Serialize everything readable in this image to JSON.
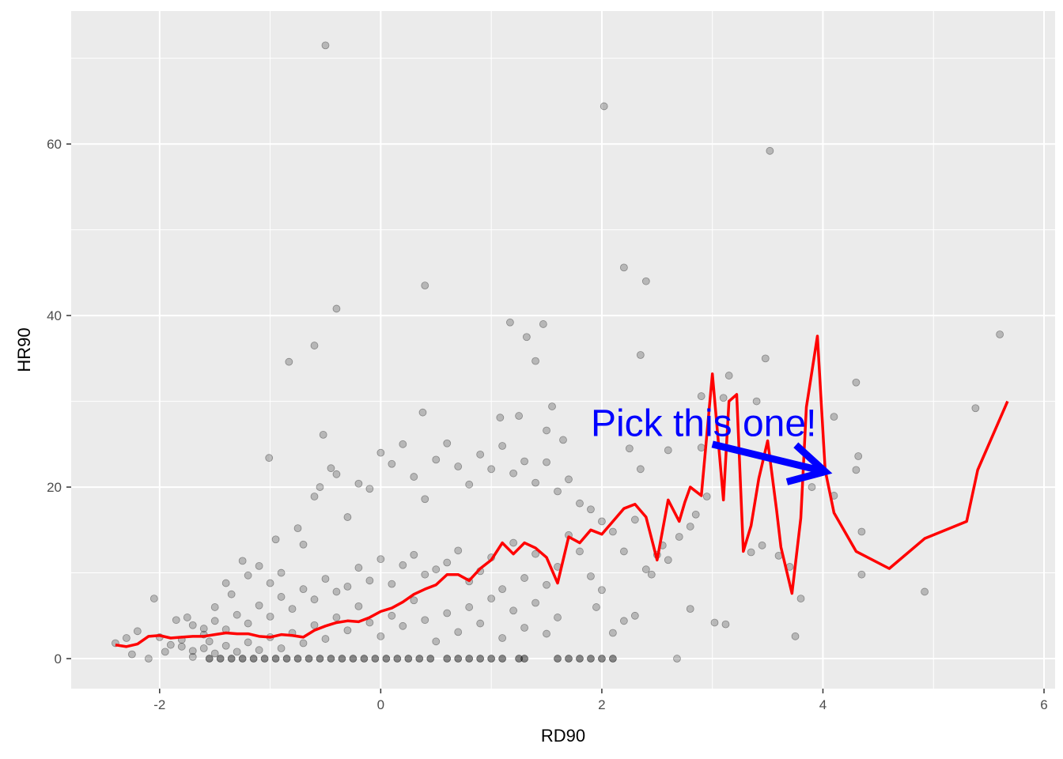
{
  "chart_data": {
    "type": "scatter",
    "title": "",
    "xlabel": "RD90",
    "ylabel": "HR90",
    "xlim": [
      -2.8,
      6.1
    ],
    "ylim": [
      -3.5,
      75.5
    ],
    "x_ticks": [
      -2,
      0,
      2,
      4,
      6
    ],
    "y_ticks": [
      0,
      20,
      40,
      60
    ],
    "x_tick_labels": [
      "-2",
      "0",
      "2",
      "4",
      "6"
    ],
    "y_tick_labels": [
      "0",
      "20",
      "40",
      "60"
    ],
    "grid": true,
    "legend": "none",
    "colors": {
      "panel": "#ebebeb",
      "grid": "#ffffff",
      "points": "#000000",
      "line": "#ff0000",
      "annotation": "#0000ff"
    },
    "annotation": {
      "text": "Pick this one!",
      "text_at": [
        1.9,
        27.5
      ],
      "arrow_from": [
        3.0,
        25.0
      ],
      "arrow_to": [
        4.02,
        21.8
      ]
    },
    "points": [
      [
        -0.5,
        71.5
      ],
      [
        2.02,
        64.4
      ],
      [
        3.52,
        59.2
      ],
      [
        2.2,
        45.6
      ],
      [
        2.4,
        44.0
      ],
      [
        0.4,
        43.5
      ],
      [
        -0.4,
        40.8
      ],
      [
        1.17,
        39.2
      ],
      [
        1.47,
        39.0
      ],
      [
        -0.6,
        36.5
      ],
      [
        -0.83,
        34.6
      ],
      [
        1.32,
        37.5
      ],
      [
        2.35,
        35.4
      ],
      [
        3.48,
        35.0
      ],
      [
        1.4,
        34.7
      ],
      [
        3.15,
        33.0
      ],
      [
        4.3,
        32.2
      ],
      [
        5.6,
        37.8
      ],
      [
        3.4,
        30.0
      ],
      [
        2.9,
        30.6
      ],
      [
        3.1,
        30.4
      ],
      [
        1.55,
        29.4
      ],
      [
        4.1,
        28.2
      ],
      [
        0.38,
        28.7
      ],
      [
        1.08,
        28.1
      ],
      [
        1.25,
        28.3
      ],
      [
        -0.52,
        26.1
      ],
      [
        -1.01,
        23.4
      ],
      [
        1.5,
        26.6
      ],
      [
        1.65,
        25.5
      ],
      [
        2.25,
        24.5
      ],
      [
        2.35,
        22.1
      ],
      [
        2.6,
        24.3
      ],
      [
        2.9,
        24.6
      ],
      [
        4.32,
        23.6
      ],
      [
        4.1,
        19.0
      ],
      [
        4.3,
        22.0
      ],
      [
        3.9,
        20.0
      ],
      [
        3.6,
        12.0
      ],
      [
        3.7,
        10.7
      ],
      [
        3.8,
        7.0
      ],
      [
        3.75,
        2.6
      ],
      [
        4.35,
        14.8
      ],
      [
        4.35,
        9.8
      ],
      [
        4.92,
        7.8
      ],
      [
        5.38,
        29.2
      ],
      [
        3.35,
        12.4
      ],
      [
        3.45,
        13.2
      ],
      [
        3.02,
        4.2
      ],
      [
        3.12,
        4.0
      ],
      [
        2.68,
        0.0
      ],
      [
        2.8,
        5.8
      ],
      [
        2.55,
        13.2
      ],
      [
        2.45,
        9.8
      ],
      [
        2.3,
        5.0
      ],
      [
        2.1,
        3.0
      ],
      [
        2.2,
        4.4
      ],
      [
        1.95,
        6.0
      ],
      [
        -2.4,
        1.8
      ],
      [
        -2.3,
        2.4
      ],
      [
        -2.25,
        0.5
      ],
      [
        -2.2,
        3.2
      ],
      [
        -2.1,
        0.0
      ],
      [
        -2.05,
        7.0
      ],
      [
        -2.0,
        2.5
      ],
      [
        -1.95,
        0.8
      ],
      [
        -1.85,
        4.5
      ],
      [
        -1.75,
        4.8
      ],
      [
        -1.7,
        0.2
      ],
      [
        -1.6,
        3.5
      ],
      [
        -1.55,
        2.0
      ],
      [
        -1.5,
        6.0
      ],
      [
        -1.4,
        8.8
      ],
      [
        -1.35,
        7.5
      ],
      [
        -1.25,
        11.4
      ],
      [
        -1.2,
        9.7
      ],
      [
        -1.1,
        10.8
      ],
      [
        -1.0,
        8.8
      ],
      [
        -0.95,
        13.9
      ],
      [
        -0.9,
        10.0
      ],
      [
        -0.75,
        15.2
      ],
      [
        -0.7,
        13.3
      ],
      [
        -0.6,
        18.9
      ],
      [
        -0.55,
        20.0
      ],
      [
        -0.45,
        22.2
      ],
      [
        -0.4,
        21.5
      ],
      [
        -0.3,
        16.5
      ],
      [
        -0.2,
        20.4
      ],
      [
        -0.1,
        19.8
      ],
      [
        0.0,
        24.0
      ],
      [
        0.1,
        22.7
      ],
      [
        0.2,
        25.0
      ],
      [
        0.3,
        21.2
      ],
      [
        0.4,
        18.6
      ],
      [
        0.5,
        23.2
      ],
      [
        0.6,
        25.1
      ],
      [
        0.7,
        22.4
      ],
      [
        0.8,
        20.3
      ],
      [
        0.9,
        23.8
      ],
      [
        1.0,
        22.1
      ],
      [
        1.1,
        24.8
      ],
      [
        1.2,
        21.6
      ],
      [
        1.3,
        23.0
      ],
      [
        1.4,
        20.5
      ],
      [
        1.5,
        22.9
      ],
      [
        1.6,
        19.5
      ],
      [
        1.7,
        20.9
      ],
      [
        1.8,
        18.1
      ],
      [
        1.9,
        17.4
      ],
      [
        2.0,
        16.0
      ],
      [
        2.1,
        14.8
      ],
      [
        2.2,
        12.5
      ],
      [
        2.3,
        16.2
      ],
      [
        2.4,
        10.4
      ],
      [
        2.5,
        12.1
      ],
      [
        2.6,
        11.5
      ],
      [
        2.7,
        14.2
      ],
      [
        2.8,
        15.4
      ],
      [
        2.85,
        16.8
      ],
      [
        2.95,
        18.9
      ],
      [
        1.8,
        12.5
      ],
      [
        1.9,
        9.6
      ],
      [
        2.0,
        8.0
      ],
      [
        1.7,
        14.4
      ],
      [
        1.6,
        10.7
      ],
      [
        1.5,
        8.6
      ],
      [
        1.4,
        12.2
      ],
      [
        1.3,
        9.4
      ],
      [
        1.2,
        13.5
      ],
      [
        1.1,
        8.1
      ],
      [
        1.0,
        11.8
      ],
      [
        0.9,
        10.2
      ],
      [
        0.8,
        9.0
      ],
      [
        0.7,
        12.6
      ],
      [
        0.6,
        11.2
      ],
      [
        0.5,
        10.4
      ],
      [
        0.4,
        9.8
      ],
      [
        0.3,
        12.1
      ],
      [
        0.2,
        10.9
      ],
      [
        0.1,
        8.7
      ],
      [
        0.0,
        11.6
      ],
      [
        -0.1,
        9.1
      ],
      [
        -0.2,
        10.6
      ],
      [
        -0.3,
        8.4
      ],
      [
        -0.4,
        7.8
      ],
      [
        -0.5,
        9.3
      ],
      [
        -0.6,
        6.9
      ],
      [
        -0.7,
        8.1
      ],
      [
        -0.8,
        5.8
      ],
      [
        -0.9,
        7.2
      ],
      [
        -1.0,
        4.9
      ],
      [
        -1.1,
        6.2
      ],
      [
        -1.2,
        4.1
      ],
      [
        -1.3,
        5.1
      ],
      [
        -1.4,
        3.4
      ],
      [
        -1.5,
        4.4
      ],
      [
        -1.6,
        2.8
      ],
      [
        -1.7,
        3.9
      ],
      [
        -1.8,
        2.2
      ],
      [
        -1.9,
        1.6
      ],
      [
        1.6,
        4.8
      ],
      [
        1.5,
        2.9
      ],
      [
        1.4,
        6.5
      ],
      [
        1.3,
        3.6
      ],
      [
        1.2,
        5.6
      ],
      [
        1.1,
        2.4
      ],
      [
        1.0,
        7.0
      ],
      [
        0.9,
        4.1
      ],
      [
        0.8,
        6.0
      ],
      [
        0.7,
        3.1
      ],
      [
        0.6,
        5.3
      ],
      [
        0.5,
        2.0
      ],
      [
        0.4,
        4.5
      ],
      [
        0.3,
        6.8
      ],
      [
        0.2,
        3.8
      ],
      [
        0.1,
        5.0
      ],
      [
        0.0,
        2.6
      ],
      [
        -0.1,
        4.2
      ],
      [
        -0.2,
        6.1
      ],
      [
        -0.3,
        3.3
      ],
      [
        -0.4,
        4.8
      ],
      [
        -0.5,
        2.3
      ],
      [
        -0.6,
        3.9
      ],
      [
        -0.7,
        1.8
      ],
      [
        -0.8,
        3.0
      ],
      [
        -0.9,
        1.2
      ],
      [
        -1.0,
        2.5
      ],
      [
        -1.1,
        1.0
      ],
      [
        -1.2,
        1.9
      ],
      [
        -1.3,
        0.8
      ],
      [
        -1.4,
        1.5
      ],
      [
        -1.5,
        0.6
      ],
      [
        -1.6,
        1.2
      ],
      [
        -1.7,
        0.9
      ],
      [
        -1.8,
        1.4
      ]
    ],
    "zero_points": [
      [
        -1.55,
        0
      ],
      [
        -1.45,
        0
      ],
      [
        -1.35,
        0
      ],
      [
        -1.25,
        0
      ],
      [
        -1.15,
        0
      ],
      [
        -1.05,
        0
      ],
      [
        -0.95,
        0
      ],
      [
        -0.85,
        0
      ],
      [
        -0.75,
        0
      ],
      [
        -0.65,
        0
      ],
      [
        -0.55,
        0
      ],
      [
        -0.45,
        0
      ],
      [
        -0.35,
        0
      ],
      [
        -0.25,
        0
      ],
      [
        -0.15,
        0
      ],
      [
        -0.05,
        0
      ],
      [
        0.05,
        0
      ],
      [
        0.15,
        0
      ],
      [
        0.25,
        0
      ],
      [
        0.35,
        0
      ],
      [
        0.45,
        0
      ],
      [
        0.6,
        0
      ],
      [
        0.7,
        0
      ],
      [
        0.8,
        0
      ],
      [
        0.9,
        0
      ],
      [
        1.0,
        0
      ],
      [
        1.1,
        0
      ],
      [
        1.25,
        0
      ],
      [
        1.3,
        0
      ],
      [
        1.6,
        0
      ],
      [
        1.7,
        0
      ],
      [
        1.8,
        0
      ],
      [
        1.9,
        0
      ],
      [
        2.0,
        0
      ],
      [
        2.1,
        0
      ]
    ],
    "line": {
      "x": [
        -2.4,
        -2.3,
        -2.2,
        -2.1,
        -2.0,
        -1.9,
        -1.8,
        -1.7,
        -1.6,
        -1.5,
        -1.4,
        -1.3,
        -1.2,
        -1.1,
        -1.0,
        -0.9,
        -0.8,
        -0.7,
        -0.6,
        -0.5,
        -0.4,
        -0.3,
        -0.2,
        -0.1,
        0.0,
        0.1,
        0.2,
        0.3,
        0.4,
        0.5,
        0.6,
        0.7,
        0.8,
        0.9,
        1.0,
        1.1,
        1.2,
        1.3,
        1.4,
        1.5,
        1.6,
        1.7,
        1.8,
        1.9,
        2.0,
        2.1,
        2.2,
        2.3,
        2.4,
        2.5,
        2.6,
        2.7,
        2.75,
        2.8,
        2.9,
        3.0,
        3.1,
        3.15,
        3.22,
        3.28,
        3.35,
        3.42,
        3.5,
        3.58,
        3.62,
        3.72,
        3.8,
        3.85,
        3.95,
        4.02,
        4.1,
        4.3,
        4.6,
        4.92,
        5.3,
        5.4,
        5.67
      ],
      "y": [
        1.6,
        1.4,
        1.7,
        2.6,
        2.7,
        2.4,
        2.5,
        2.6,
        2.6,
        2.8,
        3.0,
        2.9,
        2.9,
        2.6,
        2.5,
        2.8,
        2.7,
        2.5,
        3.3,
        3.8,
        4.2,
        4.4,
        4.3,
        4.8,
        5.5,
        5.9,
        6.6,
        7.5,
        8.1,
        8.6,
        9.8,
        9.8,
        9.1,
        10.5,
        11.5,
        13.5,
        12.2,
        13.5,
        12.9,
        11.8,
        8.8,
        14.2,
        13.5,
        15.0,
        14.5,
        16.0,
        17.5,
        18.0,
        16.5,
        11.5,
        18.5,
        16.0,
        18.2,
        20.0,
        19.0,
        33.2,
        18.5,
        30.0,
        30.8,
        12.5,
        15.5,
        21.0,
        25.4,
        17.4,
        13.0,
        7.6,
        16.4,
        29.3,
        37.6,
        22.0,
        17.0,
        12.5,
        10.5,
        14.0,
        16.0,
        22.0,
        30.0
      ]
    }
  }
}
